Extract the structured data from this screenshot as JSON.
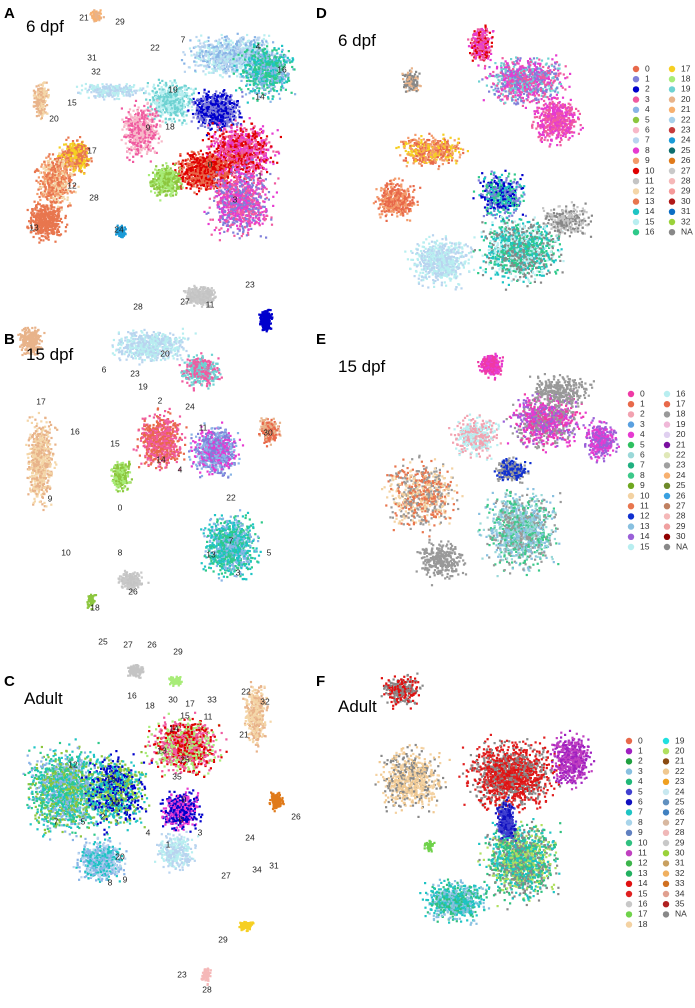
{
  "panels": [
    {
      "letter": "A",
      "title": "6 dpf",
      "labels": [
        "21",
        "29",
        "22",
        "7",
        "4",
        "16",
        "31",
        "32",
        "15",
        "19",
        "14",
        "20",
        "9",
        "18",
        "17",
        "12",
        "28",
        "24",
        "13",
        "23",
        "27",
        "11",
        "28",
        "0",
        "3",
        "1"
      ]
    },
    {
      "letter": "B",
      "title": "15 dpf",
      "labels": [
        "20",
        "6",
        "23",
        "19",
        "2",
        "24",
        "17",
        "16",
        "15",
        "11",
        "4",
        "14",
        "0",
        "9",
        "10",
        "22",
        "7",
        "13",
        "3",
        "5",
        "8",
        "26",
        "18",
        "25",
        "27",
        "26",
        "29",
        "30",
        "1"
      ]
    },
    {
      "letter": "C",
      "title": "Adult",
      "labels": [
        "16",
        "30",
        "17",
        "33",
        "22",
        "32",
        "18",
        "15",
        "11",
        "14",
        "13",
        "12",
        "19",
        "10",
        "7",
        "5",
        "2",
        "4",
        "20",
        "8",
        "9",
        "3",
        "26",
        "24",
        "34",
        "31",
        "27",
        "29",
        "23",
        "28",
        "25",
        "0",
        "6",
        "1",
        "21",
        "35"
      ]
    },
    {
      "letter": "D",
      "title": "6 dpf"
    },
    {
      "letter": "E",
      "title": "15 dpf"
    },
    {
      "letter": "F",
      "title": "Adult"
    }
  ],
  "legends": {
    "D": {
      "col1": [
        "0",
        "1",
        "2",
        "3",
        "4",
        "5",
        "6",
        "7",
        "8",
        "9",
        "10",
        "11",
        "12",
        "13",
        "14",
        "15",
        "16"
      ],
      "col2": [
        "17",
        "18",
        "19",
        "20",
        "21",
        "22",
        "23",
        "24",
        "25",
        "26",
        "27",
        "28",
        "29",
        "30",
        "31",
        "32",
        "NA"
      ]
    },
    "E": {
      "col1": [
        "0",
        "1",
        "2",
        "3",
        "4",
        "5",
        "6",
        "7",
        "8",
        "9",
        "10",
        "11",
        "12",
        "13",
        "14",
        "15"
      ],
      "col2": [
        "16",
        "17",
        "18",
        "19",
        "20",
        "21",
        "22",
        "23",
        "24",
        "25",
        "26",
        "27",
        "28",
        "29",
        "30",
        "NA"
      ]
    },
    "F": {
      "col1": [
        "0",
        "1",
        "2",
        "3",
        "4",
        "5",
        "6",
        "7",
        "8",
        "9",
        "10",
        "11",
        "12",
        "13",
        "14",
        "15",
        "16",
        "17",
        "18"
      ],
      "col2": [
        "19",
        "20",
        "21",
        "22",
        "23",
        "24",
        "25",
        "26",
        "27",
        "28",
        "29",
        "30",
        "31",
        "32",
        "33",
        "34",
        "35",
        "NA"
      ]
    }
  },
  "palette": [
    "#e8694a",
    "#7f7fd9",
    "#0000cc",
    "#f05aa0",
    "#89b4e6",
    "#8cc63e",
    "#f7b8c8",
    "#b9d4ef",
    "#e63ad1",
    "#f39a6a",
    "#e00000",
    "#c4c4c4",
    "#f4d6a8",
    "#e8764e",
    "#1ec4c4",
    "#b8eef0",
    "#2ec98a",
    "#f6cf22",
    "#a8ec78",
    "#6ed2d2",
    "#e8b38a",
    "#f7b06f",
    "#a7d0ea",
    "#c63c3c",
    "#1a9bd8",
    "#0e6e6e",
    "#e07a1a",
    "#c9c9c9",
    "#f5b8b8",
    "#f59a9a",
    "#b01818",
    "#0b6ec4",
    "#9ad23a"
  ],
  "palette_E": [
    "#ef3aa5",
    "#e8694a",
    "#f2a2b0",
    "#5aa0e0",
    "#e63ad1",
    "#2ec060",
    "#9ad8d8",
    "#20b080",
    "#3dc98a",
    "#6fa820",
    "#f3d2a2",
    "#e8764e",
    "#1030d0",
    "#88c0e0",
    "#9a60d8",
    "#b8eef0",
    "#b8eef0",
    "#e8694a",
    "#999999",
    "#f0b8d8",
    "#e0d0f0",
    "#7a0fa0",
    "#e0e8b8",
    "#a0a0a0",
    "#f7b06f",
    "#6e8a2a",
    "#3aa0e0",
    "#c08060",
    "#f5b8b8",
    "#f0a0a0",
    "#900000"
  ],
  "palette_F": [
    "#e8694a",
    "#a020c0",
    "#20a040",
    "#88c0e0",
    "#20b878",
    "#4040d0",
    "#1010c0",
    "#1ec4c4",
    "#a8d4ea",
    "#6080c0",
    "#30c080",
    "#c040c0",
    "#3cb44b",
    "#22b060",
    "#e01010",
    "#e02020",
    "#c8c8c8",
    "#6fd24a",
    "#f4d2a2",
    "#20e0e0",
    "#b0e060",
    "#8a4a10",
    "#f0c890",
    "#f0a020",
    "#c8e8f0",
    "#6090c0",
    "#4080c0",
    "#d8b8a0",
    "#f0b8b8",
    "#c8c8c8",
    "#9ad23a",
    "#c8a060",
    "#f0b060",
    "#d07020",
    "#e0a090",
    "#b02020"
  ],
  "na_color": "#888888"
}
